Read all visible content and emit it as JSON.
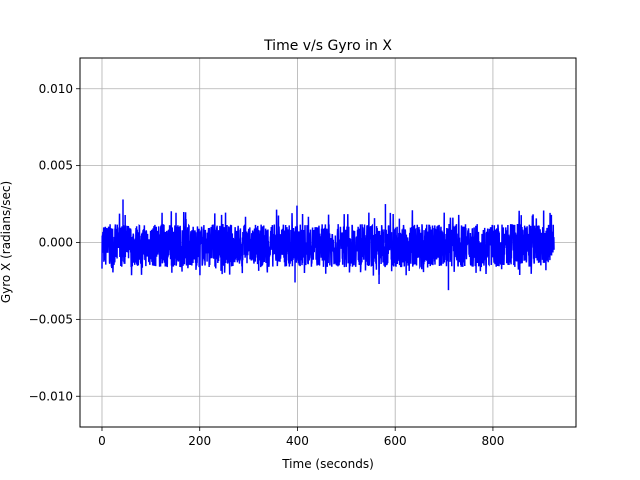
{
  "chart_data": {
    "type": "line",
    "title": "Time v/s Gyro in X",
    "xlabel": "Time (seconds)",
    "ylabel": "Gyro X (radians/sec)",
    "xlim": [
      -45,
      970
    ],
    "ylim": [
      -0.012,
      0.012
    ],
    "x_ticks": [
      0,
      200,
      400,
      600,
      800
    ],
    "x_tick_labels": [
      "0",
      "200",
      "400",
      "600",
      "800"
    ],
    "y_ticks": [
      -0.01,
      -0.005,
      0.0,
      0.005,
      0.01
    ],
    "y_tick_labels": [
      "−0.010",
      "−0.005",
      "0.000",
      "0.005",
      "0.010"
    ],
    "grid": true,
    "series": [
      {
        "color": "#0000ff",
        "x_range": [
          0,
          925
        ],
        "band_min": -0.0016,
        "band_max": 0.0012,
        "peak_max": 0.0028,
        "peak_min": -0.0031,
        "spikes": [
          {
            "x": 43,
            "y": 0.0028
          },
          {
            "x": 709,
            "y": -0.0031
          },
          {
            "x": 567,
            "y": -0.0027
          },
          {
            "x": 580,
            "y": 0.0025
          },
          {
            "x": 395,
            "y": -0.0026
          },
          {
            "x": 399,
            "y": 0.0024
          }
        ]
      }
    ]
  }
}
